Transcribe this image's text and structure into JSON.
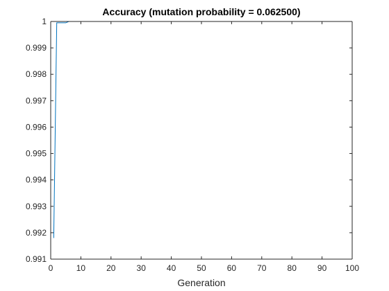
{
  "chart_data": {
    "type": "line",
    "title": "Accuracy (mutation probability = 0.062500)",
    "xlabel": "Generation",
    "ylabel": "",
    "xlim": [
      0,
      100
    ],
    "ylim": [
      0.991,
      1
    ],
    "x_ticks": [
      "0",
      "10",
      "20",
      "30",
      "40",
      "50",
      "60",
      "70",
      "80",
      "90",
      "100"
    ],
    "y_ticks": [
      "0.991",
      "0.992",
      "0.993",
      "0.994",
      "0.995",
      "0.996",
      "0.997",
      "0.998",
      "0.999",
      "1"
    ],
    "grid": false,
    "series": [
      {
        "color": "#0072BD",
        "x": [
          1,
          2,
          3,
          4,
          5,
          6,
          7,
          8,
          9,
          10,
          20,
          30,
          40,
          50,
          60,
          70,
          80,
          90,
          100
        ],
        "y": [
          0.9918,
          0.99995,
          0.99995,
          0.99995,
          0.99995,
          1,
          1,
          1,
          1,
          1,
          1,
          1,
          1,
          1,
          1,
          1,
          1,
          1,
          1
        ]
      }
    ]
  }
}
